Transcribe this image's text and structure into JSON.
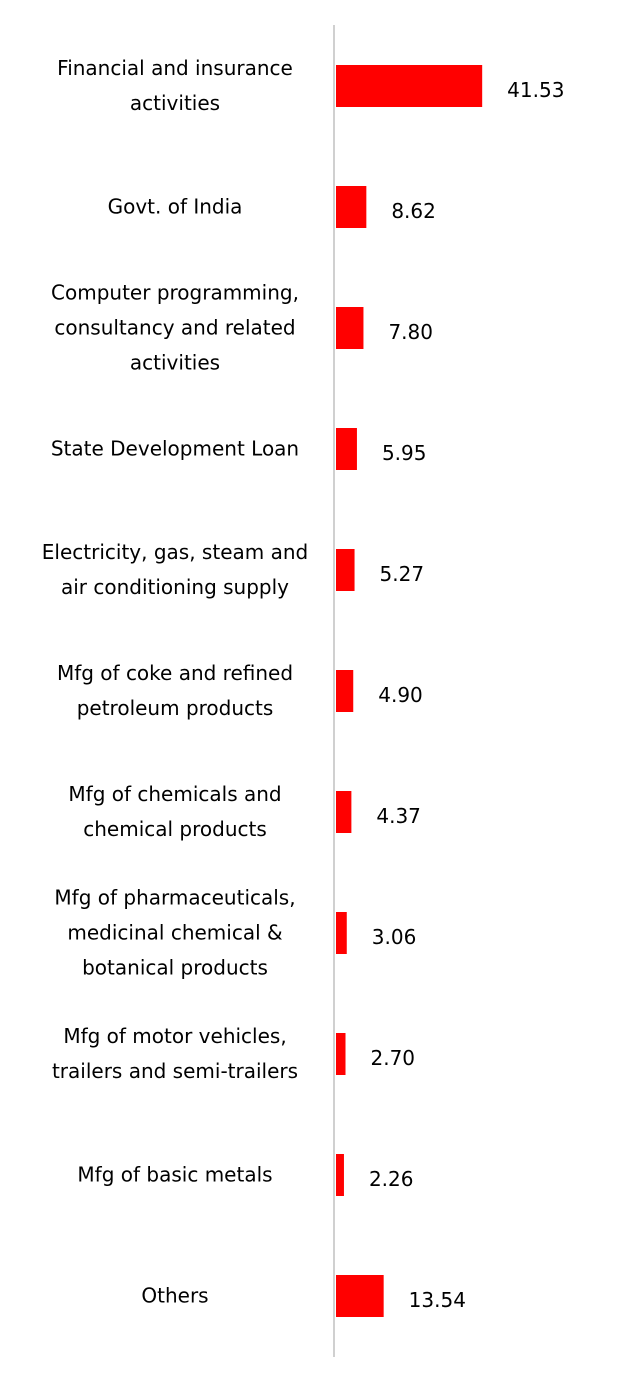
{
  "chart_data": {
    "type": "bar",
    "orientation": "horizontal",
    "color": "#ff0000",
    "categories": [
      "Financial and insurance activities",
      "Govt. of India",
      "Computer programming, consultancy and related activities",
      "State Development Loan",
      "Electricity, gas, steam and air conditioning supply",
      "Mfg of coke and refined petroleum products",
      "Mfg of chemicals and chemical products",
      "Mfg of pharmaceuticals, medicinal chemical & botanical products",
      "Mfg of motor vehicles, trailers and semi-trailers",
      "Mfg of basic metals",
      "Others"
    ],
    "values": [
      41.53,
      8.62,
      7.8,
      5.95,
      5.27,
      4.9,
      4.37,
      3.06,
      2.7,
      2.26,
      13.54
    ],
    "value_labels": [
      "41.53",
      "8.62",
      "7.80",
      "5.95",
      "5.27",
      "4.90",
      "4.37",
      "3.06",
      "2.70",
      "2.26",
      "13.54"
    ]
  }
}
